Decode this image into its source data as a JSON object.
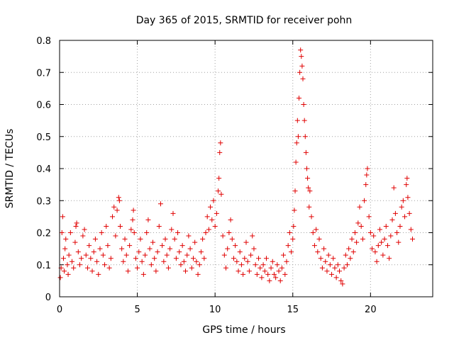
{
  "chart_data": {
    "type": "scatter",
    "title": "Day 365 of 2015, SRMTID for receiver pohn",
    "xlabel": "GPS time / hours",
    "ylabel": "SRMTID / TECUs",
    "xlim": [
      0,
      24
    ],
    "ylim": [
      0,
      0.8
    ],
    "xticks": [
      0,
      5,
      10,
      15,
      20
    ],
    "yticks": [
      0,
      0.1,
      0.2,
      0.3,
      0.4,
      0.5,
      0.6,
      0.7,
      0.8
    ],
    "xtick_labels": [
      "0",
      "5",
      "10",
      "15",
      "20"
    ],
    "ytick_labels": [
      "0",
      "0.1",
      "0.2",
      "0.3",
      "0.4",
      "0.5",
      "0.6",
      "0.7",
      "0.8"
    ],
    "grid": true,
    "marker": "+",
    "series": [
      {
        "name": "SRMTID",
        "color": "#e00000",
        "points": [
          [
            0.05,
            0.06
          ],
          [
            0.1,
            0.09
          ],
          [
            0.15,
            0.2
          ],
          [
            0.2,
            0.25
          ],
          [
            0.25,
            0.12
          ],
          [
            0.3,
            0.08
          ],
          [
            0.35,
            0.15
          ],
          [
            0.4,
            0.18
          ],
          [
            0.5,
            0.1
          ],
          [
            0.55,
            0.07
          ],
          [
            0.6,
            0.13
          ],
          [
            0.7,
            0.2
          ],
          [
            0.8,
            0.11
          ],
          [
            0.9,
            0.09
          ],
          [
            1.0,
            0.17
          ],
          [
            1.05,
            0.22
          ],
          [
            1.1,
            0.23
          ],
          [
            1.2,
            0.14
          ],
          [
            1.3,
            0.1
          ],
          [
            1.4,
            0.12
          ],
          [
            1.5,
            0.19
          ],
          [
            1.6,
            0.21
          ],
          [
            1.7,
            0.13
          ],
          [
            1.8,
            0.09
          ],
          [
            1.9,
            0.16
          ],
          [
            2.0,
            0.12
          ],
          [
            2.1,
            0.08
          ],
          [
            2.2,
            0.14
          ],
          [
            2.3,
            0.18
          ],
          [
            2.4,
            0.11
          ],
          [
            2.5,
            0.07
          ],
          [
            2.6,
            0.15
          ],
          [
            2.7,
            0.2
          ],
          [
            2.8,
            0.13
          ],
          [
            2.9,
            0.1
          ],
          [
            3.0,
            0.22
          ],
          [
            3.1,
            0.16
          ],
          [
            3.2,
            0.09
          ],
          [
            3.3,
            0.12
          ],
          [
            3.4,
            0.25
          ],
          [
            3.5,
            0.28
          ],
          [
            3.6,
            0.19
          ],
          [
            3.7,
            0.27
          ],
          [
            3.8,
            0.31
          ],
          [
            3.85,
            0.3
          ],
          [
            3.9,
            0.22
          ],
          [
            4.0,
            0.15
          ],
          [
            4.1,
            0.11
          ],
          [
            4.2,
            0.18
          ],
          [
            4.3,
            0.13
          ],
          [
            4.4,
            0.08
          ],
          [
            4.5,
            0.16
          ],
          [
            4.6,
            0.21
          ],
          [
            4.7,
            0.24
          ],
          [
            4.75,
            0.27
          ],
          [
            4.8,
            0.2
          ],
          [
            4.9,
            0.12
          ],
          [
            5.0,
            0.09
          ],
          [
            5.1,
            0.14
          ],
          [
            5.2,
            0.18
          ],
          [
            5.3,
            0.11
          ],
          [
            5.4,
            0.07
          ],
          [
            5.5,
            0.13
          ],
          [
            5.6,
            0.2
          ],
          [
            5.7,
            0.24
          ],
          [
            5.8,
            0.15
          ],
          [
            5.9,
            0.1
          ],
          [
            6.0,
            0.17
          ],
          [
            6.1,
            0.12
          ],
          [
            6.2,
            0.08
          ],
          [
            6.3,
            0.14
          ],
          [
            6.4,
            0.22
          ],
          [
            6.5,
            0.29
          ],
          [
            6.6,
            0.16
          ],
          [
            6.7,
            0.11
          ],
          [
            6.8,
            0.18
          ],
          [
            6.9,
            0.13
          ],
          [
            7.0,
            0.09
          ],
          [
            7.1,
            0.15
          ],
          [
            7.2,
            0.21
          ],
          [
            7.3,
            0.26
          ],
          [
            7.4,
            0.18
          ],
          [
            7.5,
            0.12
          ],
          [
            7.6,
            0.2
          ],
          [
            7.7,
            0.14
          ],
          [
            7.8,
            0.1
          ],
          [
            7.9,
            0.16
          ],
          [
            8.0,
            0.11
          ],
          [
            8.1,
            0.08
          ],
          [
            8.2,
            0.13
          ],
          [
            8.3,
            0.19
          ],
          [
            8.4,
            0.15
          ],
          [
            8.5,
            0.09
          ],
          [
            8.6,
            0.12
          ],
          [
            8.7,
            0.17
          ],
          [
            8.8,
            0.11
          ],
          [
            8.9,
            0.07
          ],
          [
            9.0,
            0.1
          ],
          [
            9.1,
            0.14
          ],
          [
            9.2,
            0.18
          ],
          [
            9.3,
            0.12
          ],
          [
            9.4,
            0.2
          ],
          [
            9.5,
            0.25
          ],
          [
            9.6,
            0.21
          ],
          [
            9.7,
            0.28
          ],
          [
            9.8,
            0.24
          ],
          [
            9.9,
            0.3
          ],
          [
            10.0,
            0.22
          ],
          [
            10.1,
            0.26
          ],
          [
            10.2,
            0.33
          ],
          [
            10.25,
            0.37
          ],
          [
            10.3,
            0.45
          ],
          [
            10.35,
            0.48
          ],
          [
            10.4,
            0.32
          ],
          [
            10.5,
            0.19
          ],
          [
            10.6,
            0.13
          ],
          [
            10.7,
            0.09
          ],
          [
            10.8,
            0.15
          ],
          [
            10.9,
            0.2
          ],
          [
            11.0,
            0.24
          ],
          [
            11.1,
            0.18
          ],
          [
            11.2,
            0.12
          ],
          [
            11.3,
            0.16
          ],
          [
            11.4,
            0.11
          ],
          [
            11.5,
            0.08
          ],
          [
            11.6,
            0.14
          ],
          [
            11.7,
            0.1
          ],
          [
            11.8,
            0.07
          ],
          [
            11.9,
            0.12
          ],
          [
            12.0,
            0.17
          ],
          [
            12.1,
            0.11
          ],
          [
            12.2,
            0.08
          ],
          [
            12.3,
            0.13
          ],
          [
            12.4,
            0.19
          ],
          [
            12.5,
            0.15
          ],
          [
            12.6,
            0.1
          ],
          [
            12.7,
            0.07
          ],
          [
            12.8,
            0.12
          ],
          [
            12.9,
            0.09
          ],
          [
            13.0,
            0.06
          ],
          [
            13.1,
            0.1
          ],
          [
            13.2,
            0.08
          ],
          [
            13.3,
            0.12
          ],
          [
            13.4,
            0.07
          ],
          [
            13.5,
            0.05
          ],
          [
            13.6,
            0.09
          ],
          [
            13.7,
            0.11
          ],
          [
            13.8,
            0.07
          ],
          [
            13.9,
            0.06
          ],
          [
            14.0,
            0.1
          ],
          [
            14.1,
            0.08
          ],
          [
            14.2,
            0.05
          ],
          [
            14.3,
            0.09
          ],
          [
            14.4,
            0.13
          ],
          [
            14.5,
            0.07
          ],
          [
            14.6,
            0.11
          ],
          [
            14.7,
            0.16
          ],
          [
            14.8,
            0.2
          ],
          [
            14.9,
            0.14
          ],
          [
            15.0,
            0.18
          ],
          [
            15.05,
            0.22
          ],
          [
            15.1,
            0.27
          ],
          [
            15.15,
            0.33
          ],
          [
            15.2,
            0.42
          ],
          [
            15.25,
            0.48
          ],
          [
            15.3,
            0.55
          ],
          [
            15.35,
            0.5
          ],
          [
            15.4,
            0.62
          ],
          [
            15.45,
            0.7
          ],
          [
            15.5,
            0.77
          ],
          [
            15.55,
            0.75
          ],
          [
            15.6,
            0.72
          ],
          [
            15.65,
            0.68
          ],
          [
            15.7,
            0.6
          ],
          [
            15.75,
            0.55
          ],
          [
            15.8,
            0.5
          ],
          [
            15.85,
            0.45
          ],
          [
            15.9,
            0.4
          ],
          [
            15.95,
            0.37
          ],
          [
            16.0,
            0.34
          ],
          [
            16.05,
            0.28
          ],
          [
            16.1,
            0.33
          ],
          [
            16.2,
            0.25
          ],
          [
            16.3,
            0.2
          ],
          [
            16.4,
            0.16
          ],
          [
            16.5,
            0.21
          ],
          [
            16.6,
            0.14
          ],
          [
            16.7,
            0.18
          ],
          [
            16.8,
            0.12
          ],
          [
            16.9,
            0.09
          ],
          [
            17.0,
            0.15
          ],
          [
            17.1,
            0.11
          ],
          [
            17.2,
            0.08
          ],
          [
            17.3,
            0.13
          ],
          [
            17.4,
            0.1
          ],
          [
            17.5,
            0.07
          ],
          [
            17.6,
            0.12
          ],
          [
            17.7,
            0.09
          ],
          [
            17.8,
            0.06
          ],
          [
            17.9,
            0.1
          ],
          [
            18.0,
            0.08
          ],
          [
            18.1,
            0.05
          ],
          [
            18.2,
            0.04
          ],
          [
            18.3,
            0.09
          ],
          [
            18.4,
            0.13
          ],
          [
            18.5,
            0.1
          ],
          [
            18.6,
            0.15
          ],
          [
            18.7,
            0.12
          ],
          [
            18.8,
            0.18
          ],
          [
            18.9,
            0.14
          ],
          [
            19.0,
            0.2
          ],
          [
            19.1,
            0.17
          ],
          [
            19.2,
            0.23
          ],
          [
            19.3,
            0.28
          ],
          [
            19.4,
            0.22
          ],
          [
            19.5,
            0.18
          ],
          [
            19.6,
            0.3
          ],
          [
            19.7,
            0.35
          ],
          [
            19.75,
            0.38
          ],
          [
            19.8,
            0.4
          ],
          [
            19.9,
            0.25
          ],
          [
            20.0,
            0.2
          ],
          [
            20.1,
            0.15
          ],
          [
            20.2,
            0.19
          ],
          [
            20.3,
            0.14
          ],
          [
            20.4,
            0.11
          ],
          [
            20.5,
            0.16
          ],
          [
            20.6,
            0.21
          ],
          [
            20.7,
            0.17
          ],
          [
            20.8,
            0.13
          ],
          [
            20.9,
            0.18
          ],
          [
            21.0,
            0.22
          ],
          [
            21.1,
            0.16
          ],
          [
            21.2,
            0.12
          ],
          [
            21.3,
            0.19
          ],
          [
            21.4,
            0.24
          ],
          [
            21.5,
            0.34
          ],
          [
            21.6,
            0.26
          ],
          [
            21.7,
            0.2
          ],
          [
            21.8,
            0.17
          ],
          [
            21.9,
            0.22
          ],
          [
            22.0,
            0.28
          ],
          [
            22.1,
            0.3
          ],
          [
            22.2,
            0.25
          ],
          [
            22.3,
            0.35
          ],
          [
            22.35,
            0.37
          ],
          [
            22.4,
            0.31
          ],
          [
            22.5,
            0.26
          ],
          [
            22.6,
            0.21
          ],
          [
            22.7,
            0.18
          ]
        ]
      }
    ]
  }
}
